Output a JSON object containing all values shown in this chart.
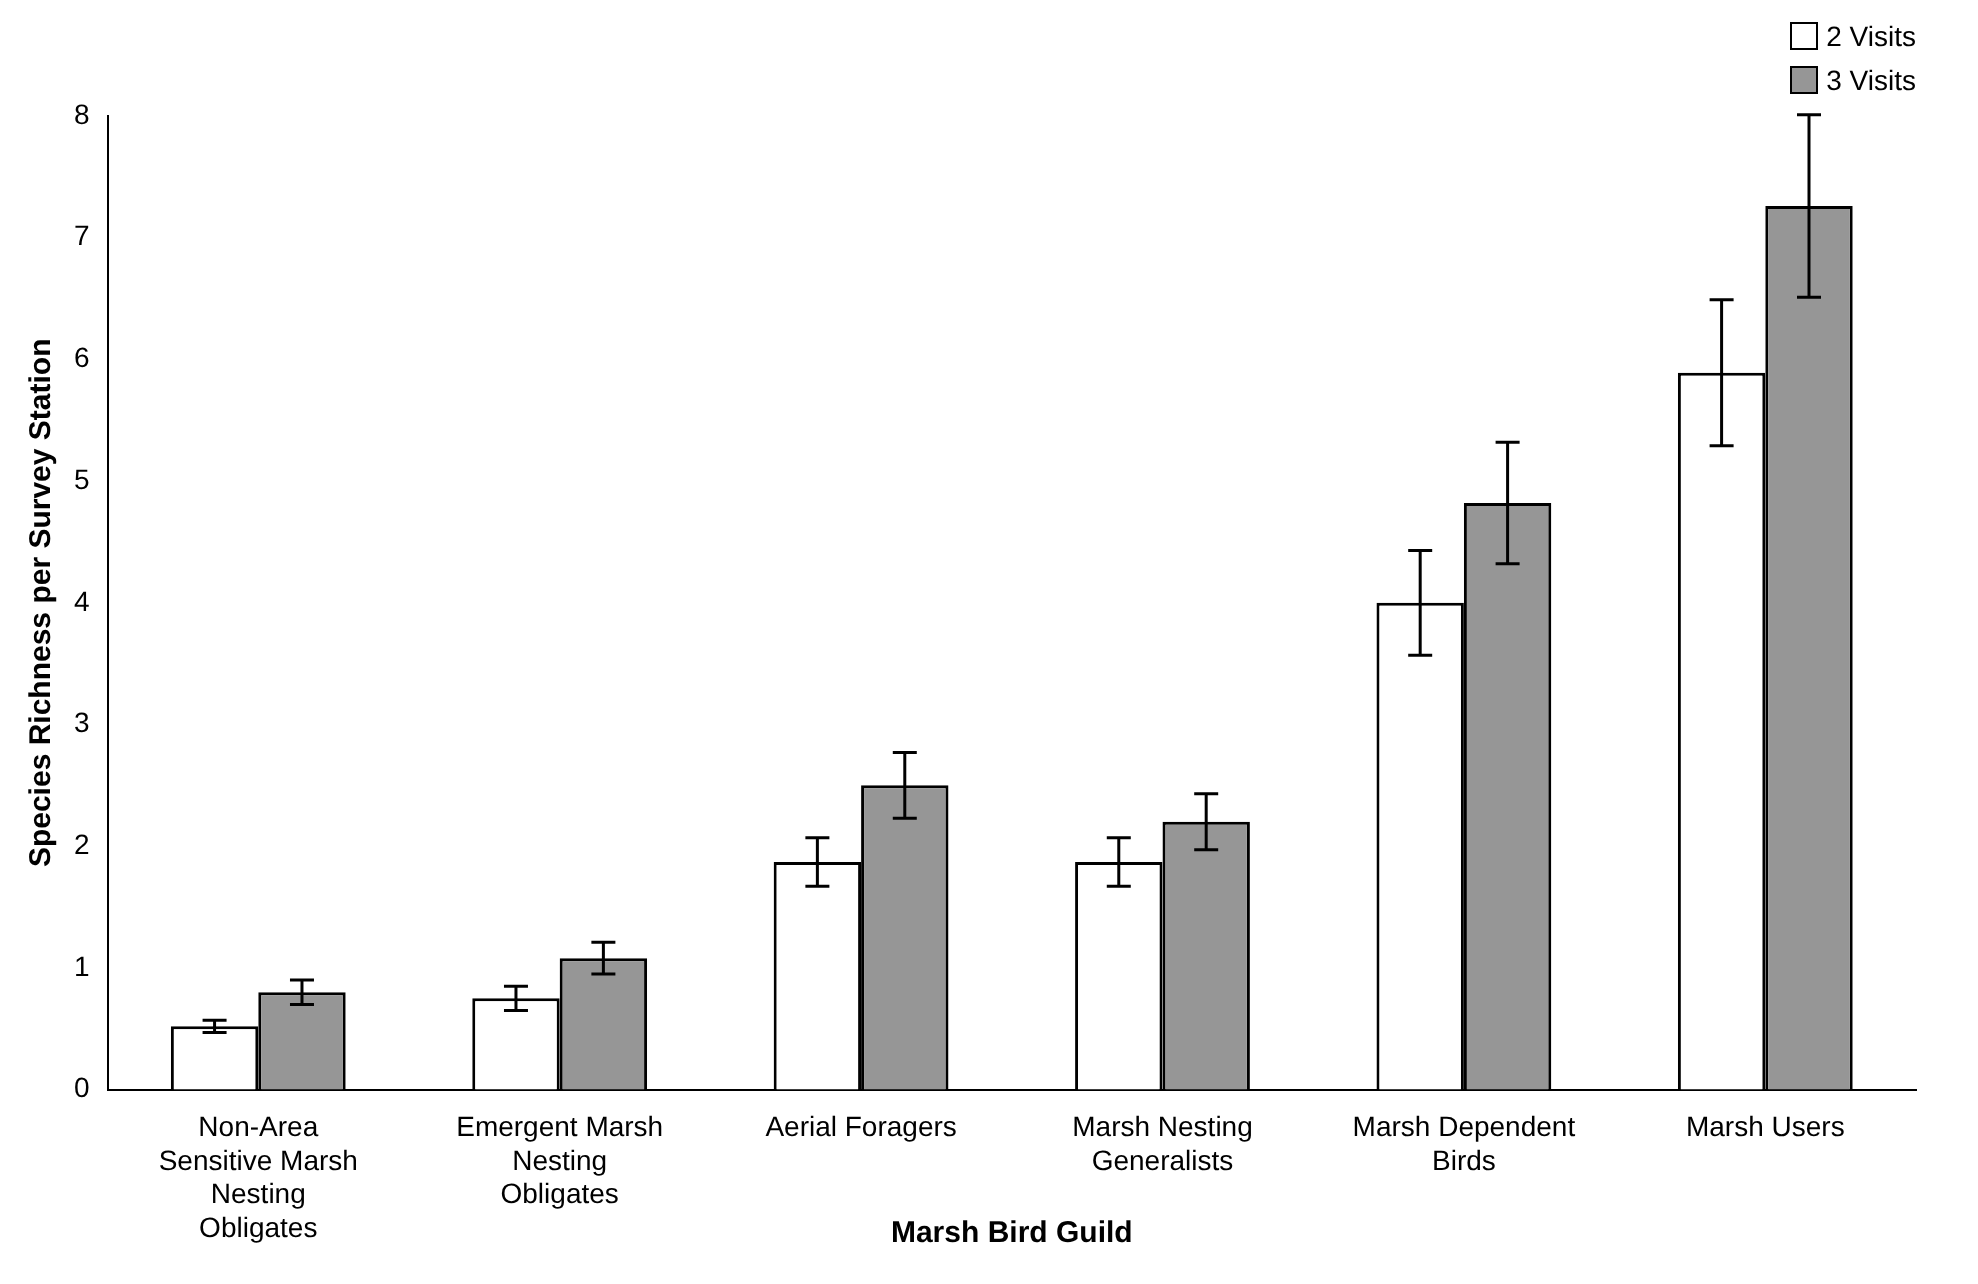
{
  "chart_data": {
    "type": "bar",
    "xlabel": "Marsh Bird Guild",
    "ylabel": "Species Richness per Survey Station",
    "categories": [
      "Non-Area Sensitive Marsh Nesting Obligates",
      "Emergent Marsh Nesting Obligates",
      "Aerial Foragers",
      "Marsh Nesting Generalists",
      "Marsh Dependent Birds",
      "Marsh Users"
    ],
    "series": [
      {
        "name": "2 Visits",
        "color": "#ffffff",
        "values": [
          0.52,
          0.75,
          1.87,
          1.87,
          4.0,
          5.89
        ],
        "errors": [
          0.05,
          0.1,
          0.2,
          0.2,
          0.43,
          0.6
        ]
      },
      {
        "name": "3 Visits",
        "color": "#969696",
        "values": [
          0.8,
          1.08,
          2.5,
          2.2,
          4.82,
          7.26
        ],
        "errors": [
          0.1,
          0.13,
          0.27,
          0.23,
          0.5,
          0.75
        ]
      }
    ],
    "ylim": [
      0,
      8
    ],
    "yticks": [
      0,
      1,
      2,
      3,
      4,
      5,
      6,
      7,
      8
    ],
    "grid": false,
    "legend": "top right"
  }
}
